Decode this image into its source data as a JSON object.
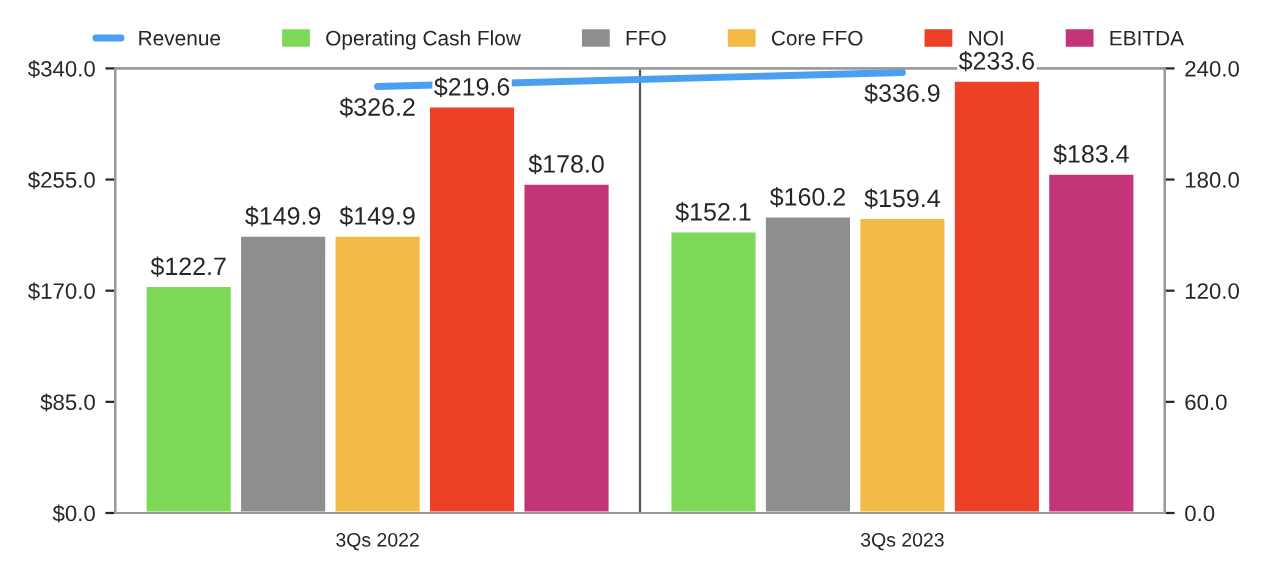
{
  "chart_data": {
    "type": "bar",
    "categories": [
      "3Qs 2022",
      "3Qs 2023"
    ],
    "series": [
      {
        "name": "Revenue",
        "type": "line",
        "axis": "y",
        "color": "#4a9ff0",
        "values": [
          326.2,
          336.9
        ],
        "value_labels": [
          "$326.2",
          "$336.9"
        ]
      },
      {
        "name": "Operating Cash Flow",
        "axis": "y2",
        "color": "#7dd957",
        "values": [
          122.7,
          152.1
        ],
        "value_labels": [
          "$122.7",
          "$152.1"
        ]
      },
      {
        "name": "FFO",
        "axis": "y2",
        "color": "#8e8e8e",
        "values": [
          149.9,
          160.2
        ],
        "value_labels": [
          "$149.9",
          "$160.2"
        ]
      },
      {
        "name": "Core FFO",
        "axis": "y2",
        "color": "#f3bb45",
        "values": [
          149.9,
          159.4
        ],
        "value_labels": [
          "$149.9",
          "$159.4"
        ]
      },
      {
        "name": "NOI",
        "axis": "y2",
        "color": "#ec4027",
        "values": [
          219.6,
          233.6
        ],
        "value_labels": [
          "$219.6",
          "$233.6"
        ]
      },
      {
        "name": "EBITDA",
        "axis": "y2",
        "color": "#c43479",
        "values": [
          178.0,
          183.4
        ],
        "value_labels": [
          "$178.0",
          "$183.4"
        ]
      }
    ],
    "ylim": [
      0,
      340
    ],
    "yticks": [
      {
        "value": 0,
        "label": "$0.0"
      },
      {
        "value": 85,
        "label": "$85.0"
      },
      {
        "value": 170,
        "label": "$170.0"
      },
      {
        "value": 255,
        "label": "$255.0"
      },
      {
        "value": 340,
        "label": "$340.0"
      }
    ],
    "y2lim": [
      0,
      240
    ],
    "y2ticks": [
      {
        "value": 0,
        "label": "0.0"
      },
      {
        "value": 60,
        "label": "60.0"
      },
      {
        "value": 120,
        "label": "120.0"
      },
      {
        "value": 180,
        "label": "180.0"
      },
      {
        "value": 240,
        "label": "240.0"
      }
    ],
    "legend": "top",
    "grid": false
  }
}
